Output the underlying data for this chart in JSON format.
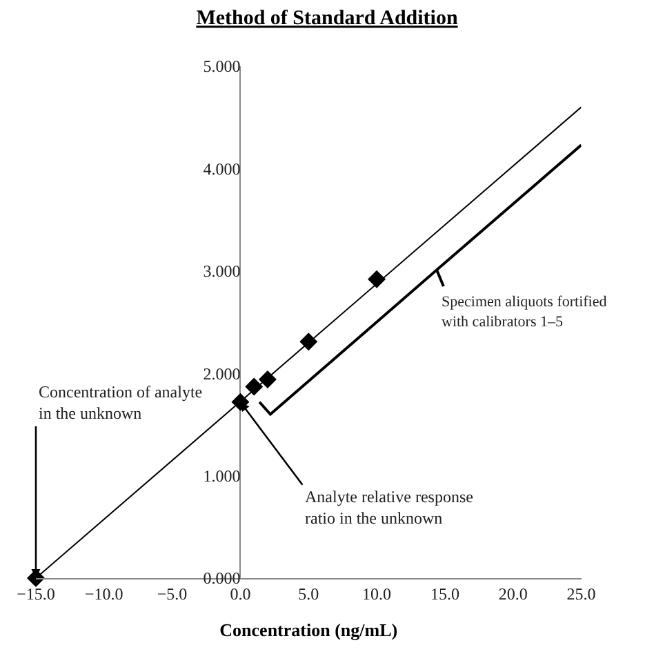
{
  "chart_data": {
    "type": "scatter",
    "title": "Method of Standard Addition",
    "xlabel": "Concentration (ng/mL)",
    "series": [
      {
        "color": "#000000",
        "x": [
          -15,
          0,
          1,
          2,
          5,
          10
        ],
        "values": [
          0,
          1.72,
          1.87,
          1.94,
          2.31,
          2.92
        ]
      },
      {
        "type": "line",
        "color": "#000000",
        "x": [
          -15,
          25
        ],
        "values": [
          0,
          4.6
        ],
        "marker": "none"
      }
    ],
    "marker": "diamond",
    "line_style": "solid",
    "xlim": [
      -15,
      25
    ],
    "ylim": [
      0,
      5
    ],
    "xticks": [
      {
        "value": -15,
        "label": "−15.0"
      },
      {
        "value": -10,
        "label": "−10.0"
      },
      {
        "value": -5,
        "label": "−5.0"
      },
      {
        "value": 0,
        "label": "0.0"
      },
      {
        "value": 5,
        "label": "5.0"
      },
      {
        "value": 10,
        "label": "10.0"
      },
      {
        "value": 15,
        "label": "15.0"
      },
      {
        "value": 20,
        "label": "20.0"
      },
      {
        "value": 25,
        "label": "25.0"
      }
    ],
    "yticks": [
      {
        "value": 0,
        "label": "0.000"
      },
      {
        "value": 1,
        "label": "1.000"
      },
      {
        "value": 2,
        "label": "2.000"
      },
      {
        "value": 3,
        "label": "3.000"
      },
      {
        "value": 4,
        "label": "4.000"
      },
      {
        "value": 5,
        "label": "5.000"
      }
    ],
    "annotations": [
      {
        "text": "Concentration of analyte\nin the unknown",
        "x": -15,
        "y": 0
      },
      {
        "text": "Analyte relative response\nratio in the unknown",
        "x": 0,
        "y": 1.72
      },
      "Specimen aliquots fortified\nwith calibrators 1–5"
    ]
  }
}
